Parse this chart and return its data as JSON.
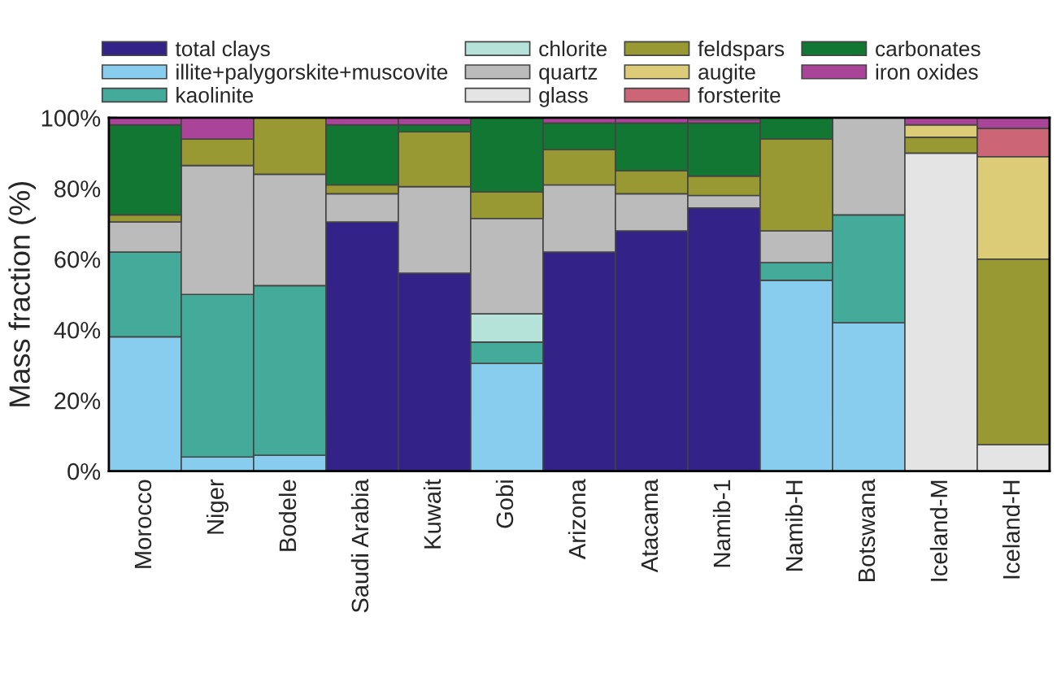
{
  "chart_data": {
    "type": "bar",
    "stacked": true,
    "ylabel": "Mass fraction (%)",
    "categories": [
      "Morocco",
      "Niger",
      "Bodele",
      "Saudi Arabia",
      "Kuwait",
      "Gobi",
      "Arizona",
      "Atacama",
      "Namib-1",
      "Namib-H",
      "Botswana",
      "Iceland-M",
      "Iceland-H"
    ],
    "series": [
      {
        "name": "total clays",
        "color": "#332288",
        "values": [
          0,
          0,
          0,
          70.5,
          56,
          0,
          62,
          68,
          74.5,
          0,
          0,
          0,
          0
        ]
      },
      {
        "name": "illite+palygorskite+muscovite",
        "color": "#88ccee",
        "values": [
          38,
          4,
          4.5,
          0,
          0,
          30.5,
          0,
          0,
          0,
          54,
          42,
          0,
          0
        ]
      },
      {
        "name": "kaolinite",
        "color": "#44aa99",
        "values": [
          24,
          46,
          48,
          0,
          0,
          6,
          0,
          0,
          0,
          5,
          30.5,
          0,
          0
        ]
      },
      {
        "name": "chlorite",
        "color": "#b5e3d9",
        "values": [
          0,
          0,
          0,
          0,
          0,
          8,
          0,
          0,
          0,
          0,
          0,
          0,
          0
        ]
      },
      {
        "name": "quartz",
        "color": "#bbbbbb",
        "values": [
          8.5,
          36.5,
          31.5,
          8,
          24.5,
          27,
          19,
          10.5,
          3.5,
          9,
          27.5,
          0,
          0
        ]
      },
      {
        "name": "glass",
        "color": "#e4e4e4",
        "values": [
          0,
          0,
          0,
          0,
          0,
          0,
          0,
          0,
          0,
          0,
          0,
          90,
          7.5
        ]
      },
      {
        "name": "feldspars",
        "color": "#999933",
        "values": [
          2,
          7.5,
          16,
          2.5,
          15.5,
          7.5,
          10,
          6.5,
          5.5,
          26,
          0,
          4.5,
          52.5
        ]
      },
      {
        "name": "augite",
        "color": "#ddcc77",
        "values": [
          0,
          0,
          0,
          0,
          0,
          0,
          0,
          0,
          0,
          0,
          0,
          3.5,
          29
        ]
      },
      {
        "name": "forsterite",
        "color": "#cc6677",
        "values": [
          0,
          0,
          0,
          0,
          0,
          0,
          0,
          0,
          0,
          0,
          0,
          0,
          8
        ]
      },
      {
        "name": "carbonates",
        "color": "#117733",
        "values": [
          25.5,
          0,
          0,
          17,
          2,
          21,
          7.5,
          13.5,
          15,
          6,
          0,
          0,
          0
        ]
      },
      {
        "name": "iron oxides",
        "color": "#aa4499",
        "values": [
          2,
          6,
          0,
          2,
          2,
          0,
          1.5,
          1.5,
          1,
          0,
          0,
          2,
          3
        ]
      }
    ],
    "ylim": [
      0,
      100
    ],
    "yticks": [
      {
        "value": 0,
        "label": "0%"
      },
      {
        "value": 10,
        "label": null
      },
      {
        "value": 20,
        "label": "20%"
      },
      {
        "value": 30,
        "label": null
      },
      {
        "value": 40,
        "label": "40%"
      },
      {
        "value": 50,
        "label": null
      },
      {
        "value": 60,
        "label": "60%"
      },
      {
        "value": 70,
        "label": null
      },
      {
        "value": 80,
        "label": "80%"
      },
      {
        "value": 90,
        "label": null
      },
      {
        "value": 100,
        "label": "100%"
      }
    ],
    "grid": false,
    "legend": "top"
  }
}
